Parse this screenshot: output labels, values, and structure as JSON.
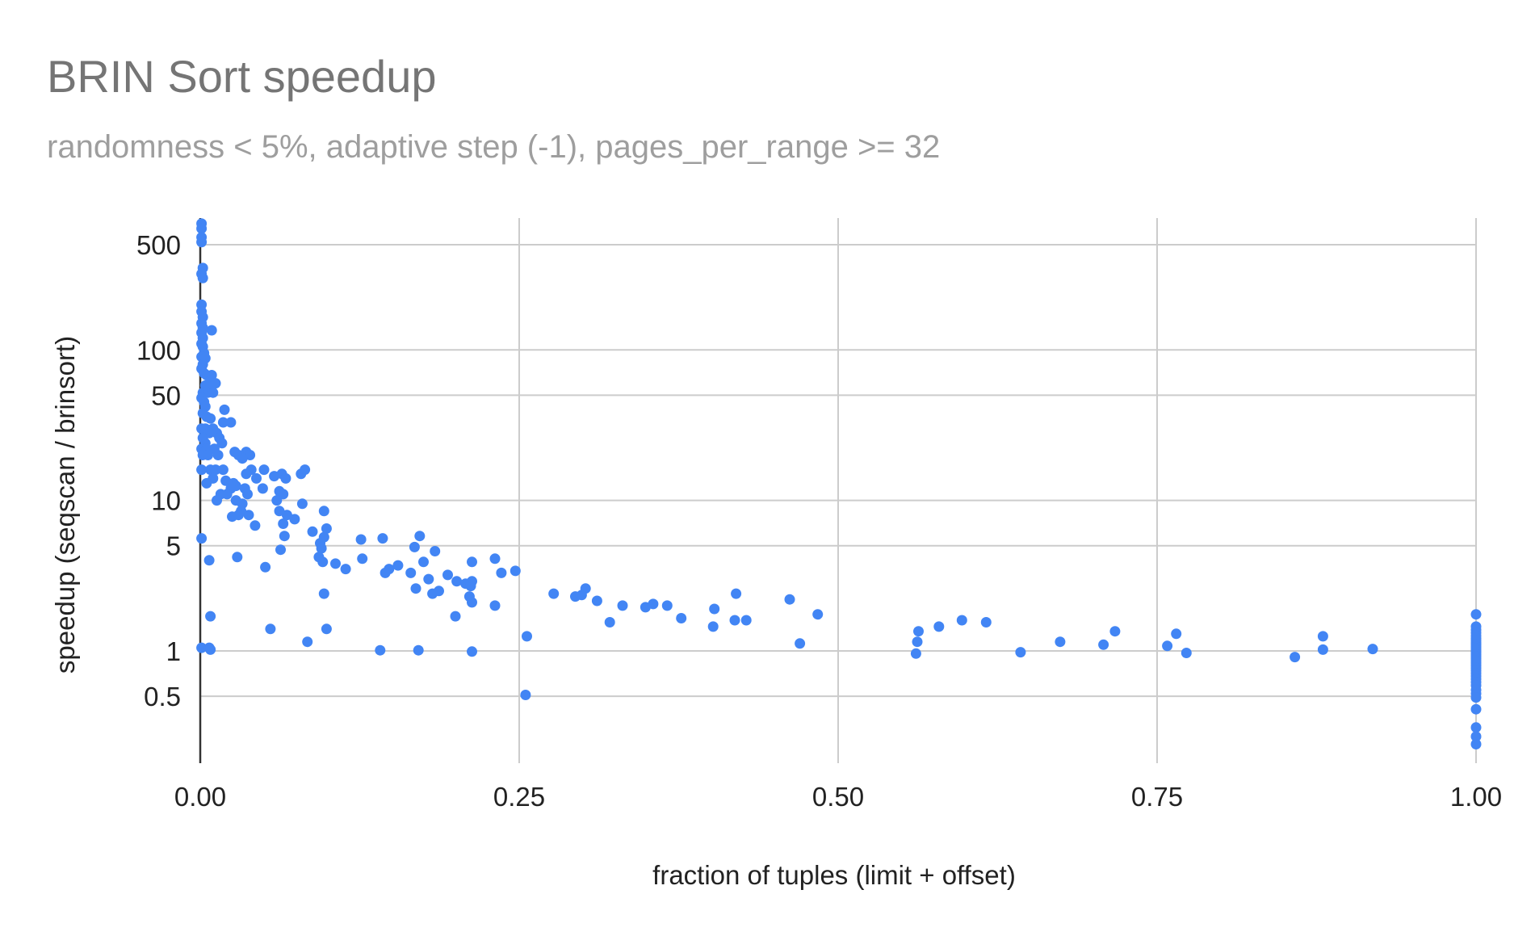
{
  "chart_data": {
    "type": "scatter",
    "title": "BRIN Sort speedup",
    "subtitle": "randomness < 5%, adaptive step (-1), pages_per_range >= 32",
    "xlabel": "fraction of tuples (limit + offset)",
    "ylabel": "speedup (seqscan / brinsort)",
    "x_scale": "linear",
    "y_scale": "log",
    "xlim": [
      0,
      1
    ],
    "ylim": [
      0.24,
      700
    ],
    "x_ticks": [
      {
        "value": 0,
        "label": "0.00"
      },
      {
        "value": 0.25,
        "label": "0.25"
      },
      {
        "value": 0.5,
        "label": "0.50"
      },
      {
        "value": 0.75,
        "label": "0.75"
      },
      {
        "value": 1,
        "label": "1.00"
      }
    ],
    "y_ticks": [
      {
        "value": 0.5,
        "label": "0.5"
      },
      {
        "value": 1,
        "label": "1"
      },
      {
        "value": 5,
        "label": "5"
      },
      {
        "value": 10,
        "label": "10"
      },
      {
        "value": 50,
        "label": "50"
      },
      {
        "value": 100,
        "label": "100"
      },
      {
        "value": 500,
        "label": "500"
      }
    ],
    "grid": true,
    "legend": "none",
    "color": "#4285f4",
    "points": [
      [
        0.001,
        690
      ],
      [
        0.001,
        640
      ],
      [
        0.001,
        560
      ],
      [
        0.001,
        520
      ],
      [
        0.002,
        350
      ],
      [
        0.001,
        320
      ],
      [
        0.002,
        300
      ],
      [
        0.001,
        200
      ],
      [
        0.001,
        180
      ],
      [
        0.002,
        165
      ],
      [
        0.001,
        150
      ],
      [
        0.002,
        140
      ],
      [
        0.001,
        130
      ],
      [
        0.002,
        120
      ],
      [
        0.001,
        110
      ],
      [
        0.002,
        105
      ],
      [
        0.009,
        135
      ],
      [
        0.003,
        95
      ],
      [
        0.001,
        90
      ],
      [
        0.004,
        88
      ],
      [
        0.002,
        80
      ],
      [
        0.001,
        75
      ],
      [
        0.003,
        70
      ],
      [
        0.005,
        68
      ],
      [
        0.009,
        68
      ],
      [
        0.008,
        62
      ],
      [
        0.012,
        60
      ],
      [
        0.004,
        58
      ],
      [
        0.007,
        55
      ],
      [
        0.002,
        52
      ],
      [
        0.006,
        52
      ],
      [
        0.01,
        52
      ],
      [
        0.001,
        48
      ],
      [
        0.003,
        45
      ],
      [
        0.004,
        42
      ],
      [
        0.019,
        40
      ],
      [
        0.002,
        38
      ],
      [
        0.005,
        36
      ],
      [
        0.008,
        35
      ],
      [
        0.018,
        33
      ],
      [
        0.024,
        33
      ],
      [
        0.001,
        30
      ],
      [
        0.004,
        30
      ],
      [
        0.01,
        30
      ],
      [
        0.007,
        28
      ],
      [
        0.013,
        28
      ],
      [
        0.002,
        26
      ],
      [
        0.015,
        26
      ],
      [
        0.004,
        24
      ],
      [
        0.017,
        24
      ],
      [
        0.001,
        22
      ],
      [
        0.005,
        22
      ],
      [
        0.011,
        22
      ],
      [
        0.027,
        21
      ],
      [
        0.036,
        21
      ],
      [
        0.002,
        20
      ],
      [
        0.006,
        20
      ],
      [
        0.014,
        20
      ],
      [
        0.03,
        20
      ],
      [
        0.039,
        20
      ],
      [
        0.033,
        19
      ],
      [
        0.001,
        16
      ],
      [
        0.008,
        16
      ],
      [
        0.012,
        16
      ],
      [
        0.018,
        16
      ],
      [
        0.04,
        16
      ],
      [
        0.05,
        16
      ],
      [
        0.064,
        15
      ],
      [
        0.036,
        15
      ],
      [
        0.058,
        14.5
      ],
      [
        0.079,
        15
      ],
      [
        0.082,
        16
      ],
      [
        0.01,
        14
      ],
      [
        0.02,
        13.5
      ],
      [
        0.026,
        13
      ],
      [
        0.028,
        12.5
      ],
      [
        0.044,
        14
      ],
      [
        0.067,
        14
      ],
      [
        0.005,
        13
      ],
      [
        0.024,
        12
      ],
      [
        0.035,
        12
      ],
      [
        0.049,
        12
      ],
      [
        0.062,
        11.5
      ],
      [
        0.065,
        11
      ],
      [
        0.016,
        11
      ],
      [
        0.021,
        11
      ],
      [
        0.037,
        11
      ],
      [
        0.013,
        10
      ],
      [
        0.028,
        10
      ],
      [
        0.033,
        9.5
      ],
      [
        0.06,
        10
      ],
      [
        0.08,
        9.5
      ],
      [
        0.097,
        8.5
      ],
      [
        0.032,
        8.5
      ],
      [
        0.03,
        8
      ],
      [
        0.038,
        8
      ],
      [
        0.062,
        8.5
      ],
      [
        0.068,
        8
      ],
      [
        0.025,
        7.8
      ],
      [
        0.065,
        7
      ],
      [
        0.074,
        7.5
      ],
      [
        0.043,
        6.8
      ],
      [
        0.088,
        6.2
      ],
      [
        0.099,
        6.5
      ],
      [
        0.066,
        5.8
      ],
      [
        0.097,
        5.7
      ],
      [
        0.001,
        5.6
      ],
      [
        0.126,
        5.5
      ],
      [
        0.143,
        5.6
      ],
      [
        0.172,
        5.8
      ],
      [
        0.094,
        5.2
      ],
      [
        0.095,
        4.8
      ],
      [
        0.168,
        4.9
      ],
      [
        0.184,
        4.6
      ],
      [
        0.063,
        4.7
      ],
      [
        0.029,
        4.2
      ],
      [
        0.093,
        4.2
      ],
      [
        0.127,
        4.1
      ],
      [
        0.231,
        4.1
      ],
      [
        0.007,
        4.0
      ],
      [
        0.096,
        3.9
      ],
      [
        0.106,
        3.8
      ],
      [
        0.155,
        3.7
      ],
      [
        0.175,
        3.9
      ],
      [
        0.213,
        3.9
      ],
      [
        0.051,
        3.6
      ],
      [
        0.114,
        3.5
      ],
      [
        0.148,
        3.5
      ],
      [
        0.145,
        3.3
      ],
      [
        0.165,
        3.3
      ],
      [
        0.194,
        3.2
      ],
      [
        0.236,
        3.3
      ],
      [
        0.247,
        3.4
      ],
      [
        0.179,
        3.0
      ],
      [
        0.201,
        2.9
      ],
      [
        0.208,
        2.8
      ],
      [
        0.213,
        2.9
      ],
      [
        0.212,
        2.7
      ],
      [
        0.169,
        2.6
      ],
      [
        0.187,
        2.5
      ],
      [
        0.182,
        2.4
      ],
      [
        0.302,
        2.6
      ],
      [
        0.097,
        2.4
      ],
      [
        0.277,
        2.4
      ],
      [
        0.294,
        2.3
      ],
      [
        0.299,
        2.35
      ],
      [
        0.42,
        2.4
      ],
      [
        0.462,
        2.2
      ],
      [
        0.311,
        2.15
      ],
      [
        0.211,
        2.3
      ],
      [
        0.213,
        2.1
      ],
      [
        0.231,
        2.0
      ],
      [
        0.331,
        2.0
      ],
      [
        0.349,
        1.95
      ],
      [
        0.355,
        2.05
      ],
      [
        0.366,
        2.0
      ],
      [
        0.403,
        1.9
      ],
      [
        0.484,
        1.75
      ],
      [
        0.008,
        1.7
      ],
      [
        0.2,
        1.7
      ],
      [
        0.377,
        1.65
      ],
      [
        0.321,
        1.55
      ],
      [
        0.402,
        1.45
      ],
      [
        0.419,
        1.6
      ],
      [
        0.428,
        1.6
      ],
      [
        0.055,
        1.4
      ],
      [
        0.099,
        1.4
      ],
      [
        0.563,
        1.35
      ],
      [
        0.579,
        1.45
      ],
      [
        0.597,
        1.6
      ],
      [
        0.616,
        1.55
      ],
      [
        0.717,
        1.35
      ],
      [
        0.765,
        1.3
      ],
      [
        0.88,
        1.25
      ],
      [
        0.256,
        1.25
      ],
      [
        0.001,
        1.05
      ],
      [
        0.007,
        1.05
      ],
      [
        0.008,
        1.02
      ],
      [
        0.084,
        1.15
      ],
      [
        0.141,
        1.01
      ],
      [
        0.171,
        1.01
      ],
      [
        0.213,
        0.99
      ],
      [
        0.47,
        1.12
      ],
      [
        0.562,
        1.15
      ],
      [
        0.674,
        1.15
      ],
      [
        0.708,
        1.1
      ],
      [
        0.758,
        1.08
      ],
      [
        0.561,
        0.96
      ],
      [
        0.643,
        0.98
      ],
      [
        0.773,
        0.97
      ],
      [
        0.858,
        0.91
      ],
      [
        0.88,
        1.02
      ],
      [
        0.919,
        1.03
      ],
      [
        0.255,
        0.51
      ],
      [
        1,
        1.75
      ],
      [
        1,
        1.45
      ],
      [
        1,
        1.38
      ],
      [
        1,
        1.32
      ],
      [
        1,
        1.26
      ],
      [
        1,
        1.21
      ],
      [
        1,
        1.17
      ],
      [
        1,
        1.13
      ],
      [
        1,
        1.1
      ],
      [
        1,
        1.07
      ],
      [
        1,
        1.04
      ],
      [
        1,
        1.01
      ],
      [
        1,
        0.98
      ],
      [
        1,
        0.95
      ],
      [
        1,
        0.92
      ],
      [
        1,
        0.89
      ],
      [
        1,
        0.86
      ],
      [
        1,
        0.83
      ],
      [
        1,
        0.8
      ],
      [
        1,
        0.77
      ],
      [
        1,
        0.74
      ],
      [
        1,
        0.71
      ],
      [
        1,
        0.68
      ],
      [
        1,
        0.65
      ],
      [
        1,
        0.62
      ],
      [
        1,
        0.59
      ],
      [
        1,
        0.55
      ],
      [
        1,
        0.52
      ],
      [
        1,
        0.49
      ],
      [
        1,
        0.41
      ],
      [
        1,
        0.31
      ],
      [
        1,
        0.27
      ],
      [
        1,
        0.24
      ]
    ]
  }
}
